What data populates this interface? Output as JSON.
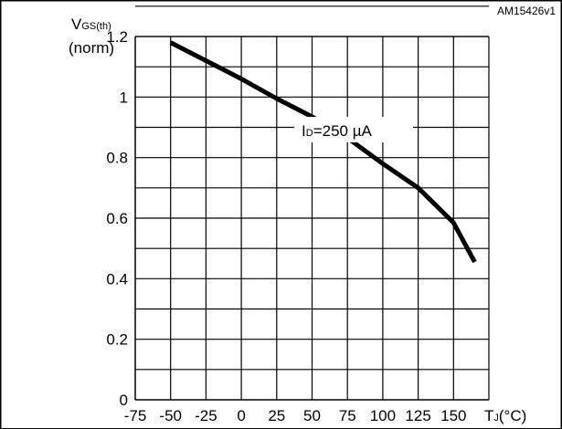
{
  "chart_data": {
    "type": "line",
    "ylabel_main": "V",
    "ylabel_sub": "GS(th)",
    "ylabel_unit": "(norm)",
    "xlabel_main": "T",
    "xlabel_sub": "J",
    "xlabel_unit": "(°C)",
    "figure_id": "AM15426v1",
    "annotation_main": "I",
    "annotation_sub": "D",
    "annotation_value": "=250 µA",
    "xlim": [
      -75,
      175
    ],
    "ylim": [
      0,
      1.2
    ],
    "xticks": [
      -75,
      -50,
      -25,
      0,
      25,
      50,
      75,
      100,
      125,
      150
    ],
    "yticks": [
      0,
      0.2,
      0.4,
      0.6,
      0.8,
      1,
      1.2
    ],
    "ytick_labels": [
      "0",
      "0.2",
      "0.4",
      "0.6",
      "0.8",
      "1",
      "1.2"
    ],
    "grid": true,
    "series": [
      {
        "color": "#000000",
        "x": [
          -50,
          -25,
          0,
          25,
          50,
          75,
          100,
          125,
          150,
          165
        ],
        "y": [
          1.18,
          1.12,
          1.06,
          0.995,
          0.935,
          0.865,
          0.78,
          0.7,
          0.585,
          0.455
        ]
      }
    ]
  }
}
